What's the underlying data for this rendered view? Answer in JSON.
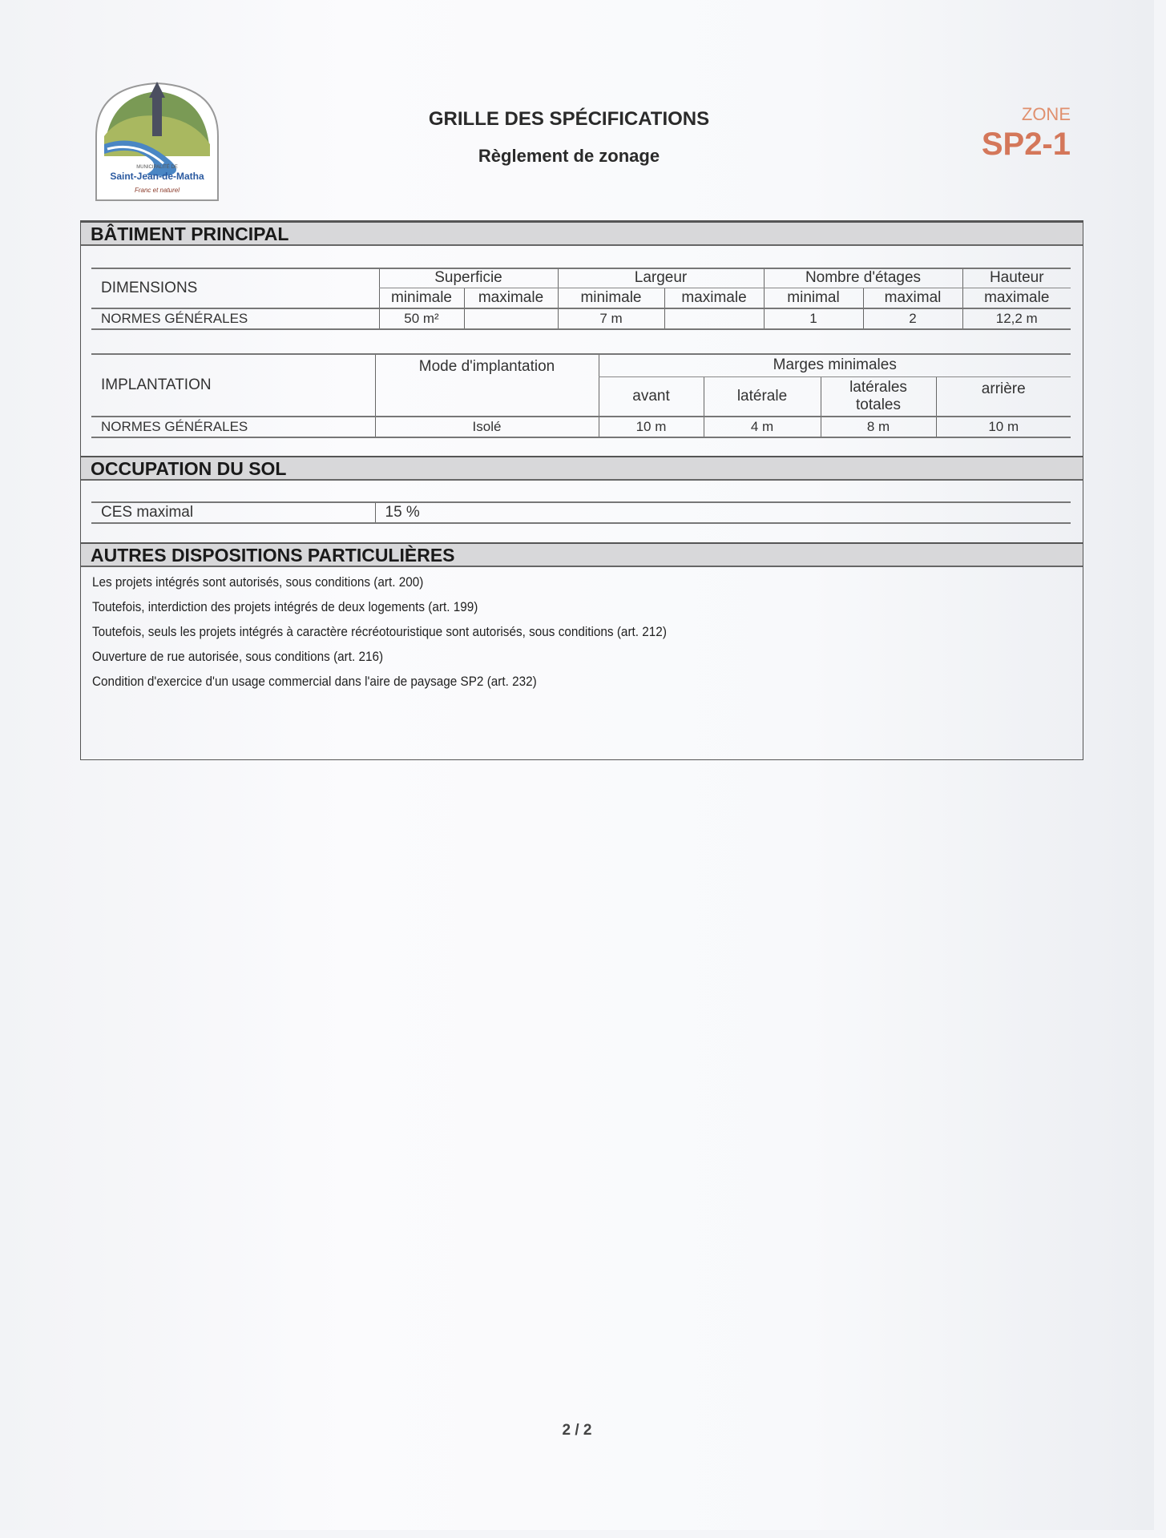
{
  "header": {
    "logo": {
      "municipality_label": "MUNICIPALITÉ DE",
      "name": "Saint-Jean-de-Matha",
      "tagline": "Franc et naturel"
    },
    "title": "GRILLE DES SPÉCIFICATIONS",
    "subtitle": "Règlement de zonage",
    "zone_label": "ZONE",
    "zone_code": "SP2-1"
  },
  "batiment_principal": {
    "heading": "BÂTIMENT PRINCIPAL",
    "dimensions": {
      "label": "DIMENSIONS",
      "groups": [
        "Superficie",
        "Largeur",
        "Nombre d'étages",
        "Hauteur"
      ],
      "subheaders": [
        "minimale",
        "maximale",
        "minimale",
        "maximale",
        "minimal",
        "maximal",
        "maximale"
      ],
      "row_label": "NORMES GÉNÉRALES",
      "values": [
        "50 m²",
        "",
        "7 m",
        "",
        "1",
        "2",
        "12,2 m"
      ]
    },
    "implantation": {
      "label": "IMPLANTATION",
      "mode_header": "Mode d'implantation",
      "marges_header": "Marges minimales",
      "subheaders": [
        "avant",
        "latérale",
        "latérales totales",
        "arrière"
      ],
      "row_label": "NORMES GÉNÉRALES",
      "values": [
        "Isolé",
        "10 m",
        "4 m",
        "8 m",
        "10 m"
      ]
    }
  },
  "occupation_du_sol": {
    "heading": "OCCUPATION DU SOL",
    "label": "CES maximal",
    "value": "15 %"
  },
  "autres_dispositions": {
    "heading": "AUTRES DISPOSITIONS PARTICULIÈRES",
    "items": [
      "Les projets intégrés sont autorisés, sous conditions (art. 200)",
      "Toutefois, interdiction des projets intégrés de deux logements (art. 199)",
      "Toutefois, seuls les projets intégrés à caractère récréotouristique sont autorisés, sous conditions (art. 212)",
      "Ouverture de rue autorisée, sous conditions (art. 216)",
      "Condition d'exercice d'un usage commercial dans l'aire de paysage SP2 (art. 232)"
    ]
  },
  "footer": {
    "page_number": "2 / 2"
  }
}
